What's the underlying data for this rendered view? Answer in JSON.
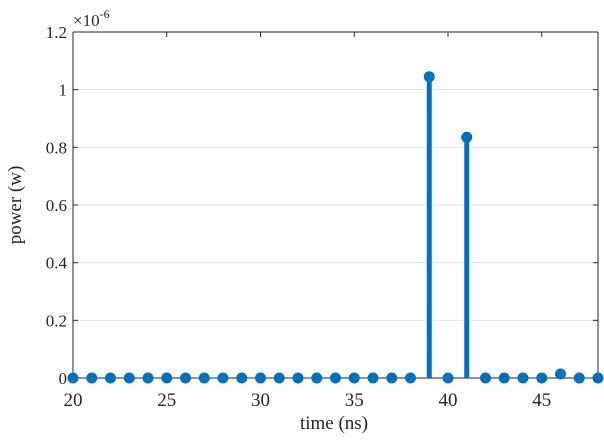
{
  "chart_data": {
    "type": "stem",
    "title": "",
    "xlabel": "time (ns)",
    "ylabel": "power (w)",
    "y_exponent_label": "×10",
    "y_exponent_power": "-6",
    "xlim": [
      20,
      48
    ],
    "ylim": [
      0,
      1.2
    ],
    "xticks": [
      20,
      25,
      30,
      35,
      40,
      45
    ],
    "yticks": [
      0,
      0.2,
      0.4,
      0.6,
      0.8,
      1,
      1.2
    ],
    "grid": "horizontal",
    "color": "#0072BD",
    "x": [
      20,
      21,
      22,
      23,
      24,
      25,
      26,
      27,
      28,
      29,
      30,
      31,
      32,
      33,
      34,
      35,
      36,
      37,
      38,
      39,
      40,
      41,
      42,
      43,
      44,
      45,
      46,
      47,
      48
    ],
    "y": [
      0,
      0,
      0,
      0,
      0,
      0,
      0,
      0,
      0,
      0,
      0,
      0,
      0,
      0,
      0,
      0,
      0,
      0,
      0,
      1.045,
      0,
      0.835,
      0,
      0,
      0,
      0,
      0.014,
      0,
      0
    ]
  }
}
